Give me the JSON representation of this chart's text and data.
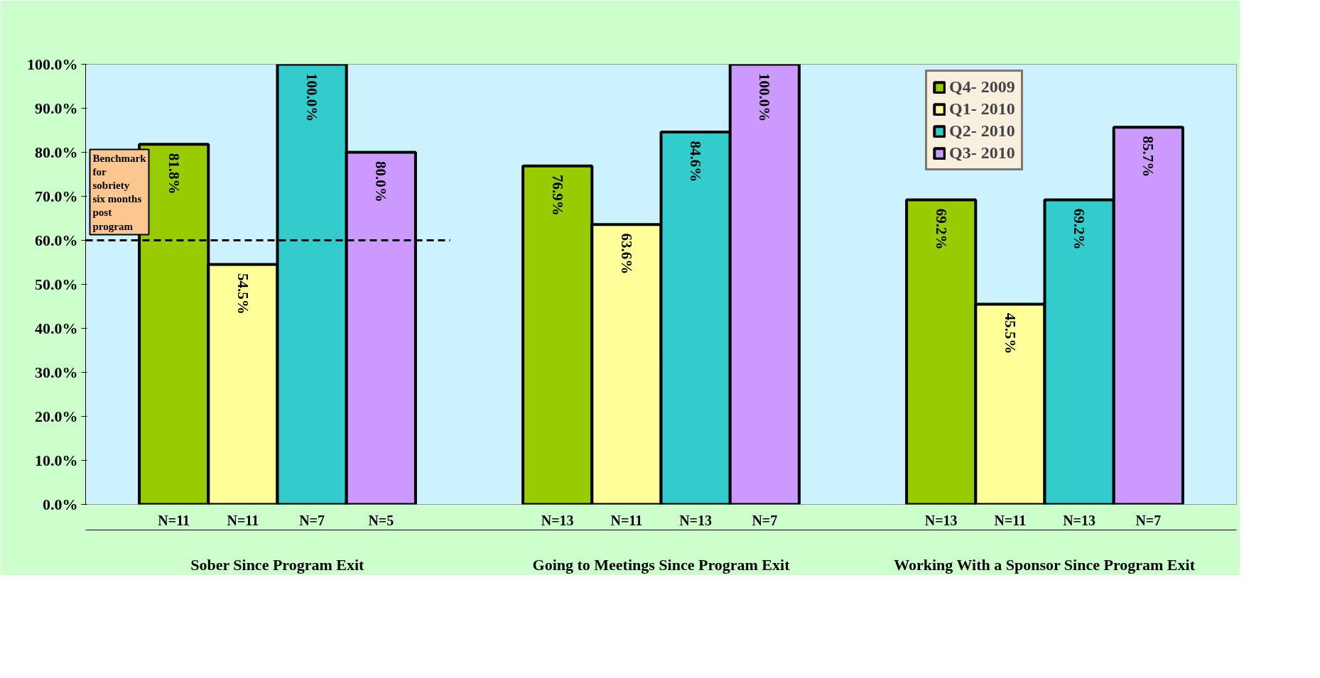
{
  "chart_data": {
    "type": "bar",
    "categories": [
      "Sober Since Program Exit",
      "Going to Meetings Since Program Exit",
      "Working With a Sponsor Since Program Exit"
    ],
    "series": [
      {
        "name": "Q4- 2009",
        "color": "#99cc00",
        "values": [
          81.8,
          76.9,
          69.2
        ],
        "value_labels": [
          "81.8%",
          "76.9%",
          "69.2%"
        ]
      },
      {
        "name": "Q1- 2010",
        "color": "#ffff99",
        "values": [
          54.5,
          63.6,
          45.5
        ],
        "value_labels": [
          "54.5%",
          "63.6%",
          "45.5%"
        ]
      },
      {
        "name": "Q2- 2010",
        "color": "#33cccc",
        "values": [
          100.0,
          84.6,
          69.2
        ],
        "value_labels": [
          "100.0%",
          "84.6%",
          "69.2%"
        ]
      },
      {
        "name": "Q3- 2010",
        "color": "#cc99ff",
        "values": [
          80.0,
          100.0,
          85.7
        ],
        "value_labels": [
          "80.0%",
          "100.0%",
          "85.7%"
        ]
      }
    ],
    "ylim": [
      0,
      100
    ],
    "yticks": [
      {
        "value": 0,
        "label": "0.0%"
      },
      {
        "value": 10,
        "label": "10.0%"
      },
      {
        "value": 20,
        "label": "20.0%"
      },
      {
        "value": 30,
        "label": "30.0%"
      },
      {
        "value": 40,
        "label": "40.0%"
      },
      {
        "value": 50,
        "label": "50.0%"
      },
      {
        "value": 60,
        "label": "60.0%"
      },
      {
        "value": 70,
        "label": "70.0%"
      },
      {
        "value": 80,
        "label": "80.0%"
      },
      {
        "value": 90,
        "label": "90.0%"
      },
      {
        "value": 100,
        "label": "100.0%"
      }
    ],
    "ref_lines": [
      {
        "axis": "y",
        "value": 60,
        "label": "Benchmark for sobriety six months post program",
        "line_style": "dashed",
        "color": "#000000"
      }
    ],
    "annotations": [
      "N=11",
      "N=11",
      "N=7",
      "N=5",
      "N=13",
      "N=11",
      "N=13",
      "N=7",
      "N=13",
      "N=11",
      "N=13",
      "N=7"
    ],
    "grid": false,
    "legend": "top"
  }
}
